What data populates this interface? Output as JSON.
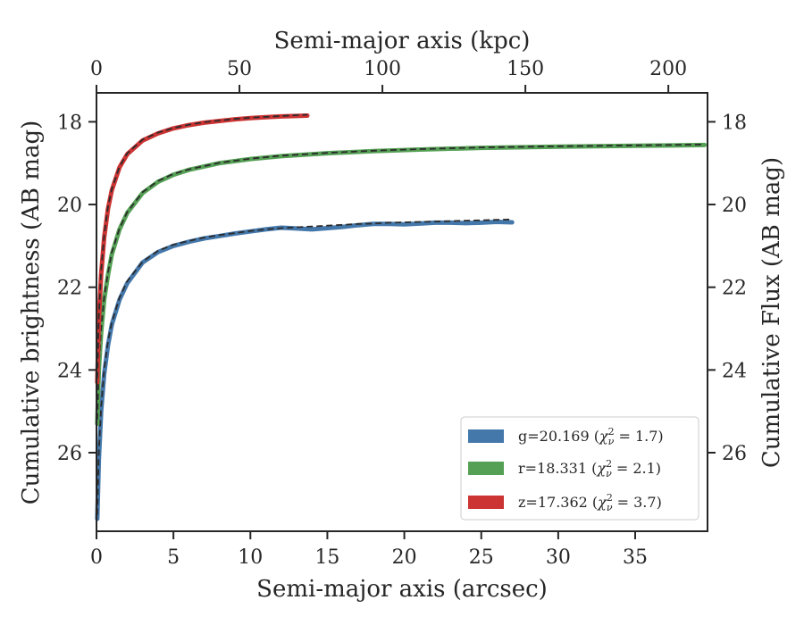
{
  "chart_data": {
    "type": "line",
    "xlabel": "Semi-major axis (arcsec)",
    "x2label": "Semi-major axis (kpc)",
    "ylabel": "Cumulative brightness (AB mag)",
    "y2label": "Cumulative Flux (AB mag)",
    "xlim": [
      0,
      39.7
    ],
    "x2lim": [
      0,
      213.7
    ],
    "ylim": [
      27.9,
      17.3
    ],
    "y_inverted": true,
    "xticks": [
      0,
      5,
      10,
      15,
      20,
      25,
      30,
      35
    ],
    "x2ticks": [
      0,
      50,
      100,
      150,
      200
    ],
    "yticks": [
      18,
      20,
      22,
      24,
      26
    ],
    "grid": false,
    "legend_position": "lower-right",
    "series": [
      {
        "name": "g=20.169",
        "chi2": "1.7",
        "color": "#4477aa",
        "model_color": "#2b2b2b",
        "x": [
          0.05,
          0.15,
          0.3,
          0.5,
          0.75,
          1.0,
          1.5,
          2.0,
          3.0,
          4.0,
          5.0,
          6.0,
          7.0,
          8.0,
          9.0,
          10.0,
          11.0,
          12.0,
          13.0,
          14.0,
          15.0,
          16.0,
          17.0,
          18.0,
          19.0,
          20.0,
          21.0,
          22.0,
          23.0,
          24.0,
          25.0,
          26.0,
          27.0
        ],
        "y": [
          27.6,
          26.2,
          25.0,
          24.1,
          23.4,
          22.9,
          22.3,
          21.9,
          21.4,
          21.15,
          21.0,
          20.9,
          20.82,
          20.76,
          20.7,
          20.65,
          20.6,
          20.56,
          20.58,
          20.6,
          20.57,
          20.54,
          20.5,
          20.47,
          20.47,
          20.48,
          20.46,
          20.44,
          20.44,
          20.45,
          20.44,
          20.42,
          20.43
        ],
        "model_y": [
          27.5,
          26.0,
          24.9,
          24.0,
          23.3,
          22.85,
          22.25,
          21.85,
          21.38,
          21.12,
          20.97,
          20.88,
          20.8,
          20.74,
          20.69,
          20.64,
          20.6,
          20.57,
          20.55,
          20.53,
          20.51,
          20.49,
          20.47,
          20.46,
          20.44,
          20.43,
          20.42,
          20.41,
          20.4,
          20.39,
          20.38,
          20.37,
          20.36
        ]
      },
      {
        "name": "r=18.331",
        "chi2": "2.1",
        "color": "#55a055",
        "model_color": "#2b2b2b",
        "x": [
          0.05,
          0.15,
          0.3,
          0.5,
          0.75,
          1.0,
          1.5,
          2.0,
          3.0,
          4.0,
          5.0,
          6.0,
          8.0,
          10.0,
          12.0,
          15.0,
          18.0,
          21.0,
          25.0,
          30.0,
          35.0,
          39.5
        ],
        "y": [
          25.3,
          24.0,
          23.1,
          22.3,
          21.7,
          21.2,
          20.6,
          20.2,
          19.72,
          19.45,
          19.28,
          19.16,
          19.0,
          18.9,
          18.83,
          18.76,
          18.71,
          18.67,
          18.63,
          18.6,
          18.58,
          18.56
        ],
        "model_y": [
          25.2,
          23.9,
          23.0,
          22.25,
          21.65,
          21.15,
          20.58,
          20.18,
          19.7,
          19.43,
          19.26,
          19.15,
          18.99,
          18.89,
          18.82,
          18.75,
          18.7,
          18.66,
          18.62,
          18.59,
          18.57,
          18.55
        ]
      },
      {
        "name": "z=17.362",
        "chi2": "3.7",
        "color": "#cc3333",
        "model_color": "#2b2b2b",
        "x": [
          0.05,
          0.15,
          0.3,
          0.5,
          0.75,
          1.0,
          1.5,
          2.0,
          3.0,
          4.0,
          5.0,
          6.0,
          7.0,
          8.0,
          9.0,
          10.0,
          11.0,
          12.0,
          13.0,
          13.7
        ],
        "y": [
          24.3,
          22.8,
          21.7,
          20.8,
          20.1,
          19.65,
          19.1,
          18.78,
          18.45,
          18.28,
          18.16,
          18.08,
          18.02,
          17.98,
          17.94,
          17.91,
          17.89,
          17.87,
          17.86,
          17.85
        ],
        "model_y": [
          24.2,
          22.7,
          21.6,
          20.75,
          20.05,
          19.62,
          19.08,
          18.76,
          18.43,
          18.26,
          18.15,
          18.07,
          18.01,
          17.97,
          17.93,
          17.9,
          17.88,
          17.86,
          17.84,
          17.83
        ]
      }
    ]
  }
}
